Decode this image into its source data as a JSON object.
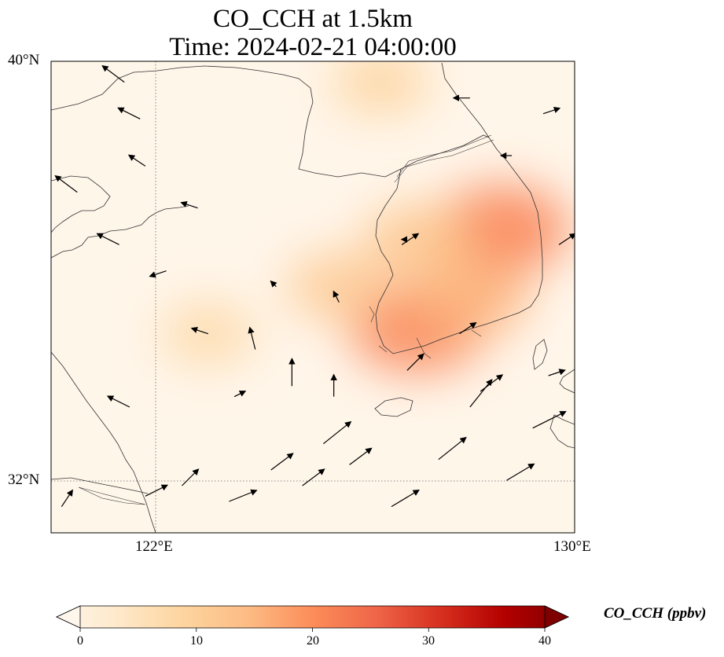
{
  "title": {
    "line1": "CO_CCH at 1.5km",
    "line2": "Time: 2024-02-21 04:00:00"
  },
  "map": {
    "extent": {
      "lon_min": 120,
      "lon_max": 130,
      "lat_min": 31,
      "lat_max": 40
    },
    "gridlines": {
      "lons": [
        122
      ],
      "lats": [
        32
      ]
    },
    "lat_labels": [
      "40°N",
      "32°N"
    ],
    "lon_labels": [
      "122°E",
      "130°E"
    ]
  },
  "field": {
    "variable": "CO_CCH",
    "colormap": "OrRd",
    "plumes": [
      {
        "lon": 127.0,
        "lat": 34.9,
        "value": 21
      },
      {
        "lon": 128.6,
        "lat": 36.8,
        "value": 21
      },
      {
        "lon": 128.0,
        "lat": 35.5,
        "value": 16
      },
      {
        "lon": 125.5,
        "lat": 35.7,
        "value": 12
      },
      {
        "lon": 123.0,
        "lat": 34.8,
        "value": 9
      },
      {
        "lon": 127.0,
        "lat": 36.6,
        "value": 13
      },
      {
        "lon": 126.3,
        "lat": 39.6,
        "value": 10
      }
    ]
  },
  "wind_vectors": [
    {
      "lon": 121.5,
      "lat": 33.4,
      "u": -4,
      "v": 2
    },
    {
      "lon": 121.8,
      "lat": 38.0,
      "u": -3,
      "v": 2
    },
    {
      "lon": 120.5,
      "lat": 37.5,
      "u": -4,
      "v": 3
    },
    {
      "lon": 121.3,
      "lat": 36.5,
      "u": -4,
      "v": 2
    },
    {
      "lon": 122.2,
      "lat": 36.0,
      "u": -3,
      "v": -1
    },
    {
      "lon": 122.8,
      "lat": 37.2,
      "u": -3,
      "v": 1
    },
    {
      "lon": 123.0,
      "lat": 34.8,
      "u": -3,
      "v": 1
    },
    {
      "lon": 123.5,
      "lat": 33.6,
      "u": 2,
      "v": 1
    },
    {
      "lon": 123.9,
      "lat": 34.5,
      "u": -1,
      "v": 4
    },
    {
      "lon": 124.3,
      "lat": 35.7,
      "u": -1,
      "v": 1
    },
    {
      "lon": 124.6,
      "lat": 33.8,
      "u": 0,
      "v": 5
    },
    {
      "lon": 125.4,
      "lat": 33.6,
      "u": 0,
      "v": 4
    },
    {
      "lon": 125.5,
      "lat": 35.4,
      "u": -1,
      "v": 2
    },
    {
      "lon": 126.7,
      "lat": 36.5,
      "u": 3,
      "v": 2
    },
    {
      "lon": 126.8,
      "lat": 34.1,
      "u": 3,
      "v": 3
    },
    {
      "lon": 127.8,
      "lat": 34.8,
      "u": 3,
      "v": 2
    },
    {
      "lon": 128.0,
      "lat": 33.4,
      "u": 4,
      "v": 5
    },
    {
      "lon": 127.4,
      "lat": 32.4,
      "u": 5,
      "v": 4
    },
    {
      "lon": 126.5,
      "lat": 31.5,
      "u": 5,
      "v": 3
    },
    {
      "lon": 125.2,
      "lat": 32.7,
      "u": 5,
      "v": 4
    },
    {
      "lon": 124.2,
      "lat": 32.2,
      "u": 4,
      "v": 3
    },
    {
      "lon": 123.4,
      "lat": 31.6,
      "u": 5,
      "v": 2
    },
    {
      "lon": 122.5,
      "lat": 31.9,
      "u": 3,
      "v": 3
    },
    {
      "lon": 121.8,
      "lat": 31.7,
      "u": 4,
      "v": 2
    },
    {
      "lon": 120.2,
      "lat": 31.5,
      "u": 2,
      "v": 3
    },
    {
      "lon": 128.7,
      "lat": 32.0,
      "u": 5,
      "v": 3
    },
    {
      "lon": 129.2,
      "lat": 33.0,
      "u": 6,
      "v": 3
    },
    {
      "lon": 129.5,
      "lat": 34.0,
      "u": 3,
      "v": 1
    },
    {
      "lon": 129.7,
      "lat": 36.5,
      "u": 3,
      "v": 2
    },
    {
      "lon": 128.8,
      "lat": 38.2,
      "u": -2,
      "v": 0
    },
    {
      "lon": 128.0,
      "lat": 39.3,
      "u": -3,
      "v": 0
    },
    {
      "lon": 129.4,
      "lat": 39.0,
      "u": 3,
      "v": 1
    },
    {
      "lon": 121.4,
      "lat": 39.6,
      "u": -4,
      "v": 3
    },
    {
      "lon": 121.7,
      "lat": 38.9,
      "u": -4,
      "v": 2
    },
    {
      "lon": 126.8,
      "lat": 36.6,
      "u": -1,
      "v": 0
    },
    {
      "lon": 124.8,
      "lat": 31.9,
      "u": 4,
      "v": 3
    },
    {
      "lon": 125.7,
      "lat": 32.3,
      "u": 4,
      "v": 3
    },
    {
      "lon": 128.2,
      "lat": 33.7,
      "u": 4,
      "v": 3
    }
  ],
  "colorbar": {
    "label": "CO_CCH (ppbv)",
    "ticks": [
      "0",
      "10",
      "20",
      "30",
      "40"
    ],
    "min": 0,
    "max": 40
  }
}
